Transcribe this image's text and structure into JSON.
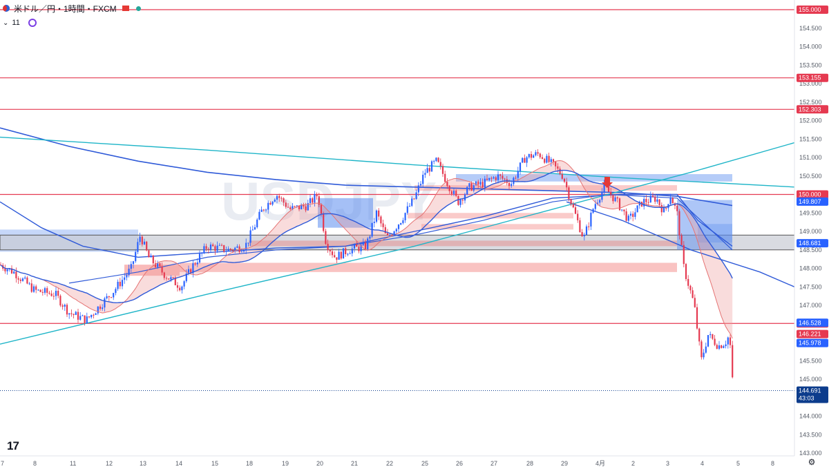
{
  "header": {
    "symbol_line": "米ドル／円・1時間・FXCM",
    "indicator_count": "11"
  },
  "chart_data": {
    "type": "candlestick",
    "title": "米ドル／円・1時間・FXCM",
    "y_axis": {
      "range": [
        143.0,
        155.3
      ],
      "ticks": [
        "143.000",
        "143.500",
        "144.000",
        "144.500",
        "145.000",
        "145.500",
        "146.000",
        "146.500",
        "147.000",
        "147.500",
        "148.000",
        "148.500",
        "149.000",
        "149.500",
        "150.000",
        "150.500",
        "151.000",
        "151.500",
        "152.000",
        "152.500",
        "153.000",
        "153.500",
        "154.000",
        "154.500"
      ]
    },
    "x_axis": {
      "labels": [
        "7",
        "8",
        "11",
        "12",
        "13",
        "14",
        "15",
        "18",
        "19",
        "20",
        "21",
        "22",
        "25",
        "26",
        "27",
        "28",
        "29",
        "4月",
        "2",
        "3",
        "4",
        "5",
        "8"
      ]
    },
    "horizontal_levels": [
      {
        "value": 155.0,
        "label": "155.000",
        "color": "#e53950"
      },
      {
        "value": 153.155,
        "label": "153.155",
        "color": "#e53950"
      },
      {
        "value": 152.303,
        "label": "152.303",
        "color": "#e53950"
      },
      {
        "value": 150.0,
        "label": "150.000",
        "color": "#e53950"
      },
      {
        "value": 146.509,
        "label": "146.509",
        "color": "#e53950"
      }
    ],
    "price_badges": [
      {
        "value": 149.807,
        "label": "149.807",
        "color": "#2962ff"
      },
      {
        "value": 148.681,
        "label": "148.681",
        "color": "#2962ff"
      },
      {
        "value": 146.528,
        "label": "146.528",
        "color": "#2962ff"
      },
      {
        "value": 146.221,
        "label": "146.221",
        "color": "#e53950"
      },
      {
        "value": 145.978,
        "label": "145.978",
        "color": "#2962ff"
      }
    ],
    "current_price": {
      "value": 144.691,
      "label": "144.691",
      "countdown": "43:03",
      "color": "#0c3c8c"
    },
    "watermark": "USDJPY",
    "colors": {
      "bull": "#2962ff",
      "bear": "#e53950",
      "ma": "#2f5ad8",
      "trend": "#1fb5c8",
      "zone_blue": "#5b8def",
      "zone_red": "#ef5350"
    }
  }
}
